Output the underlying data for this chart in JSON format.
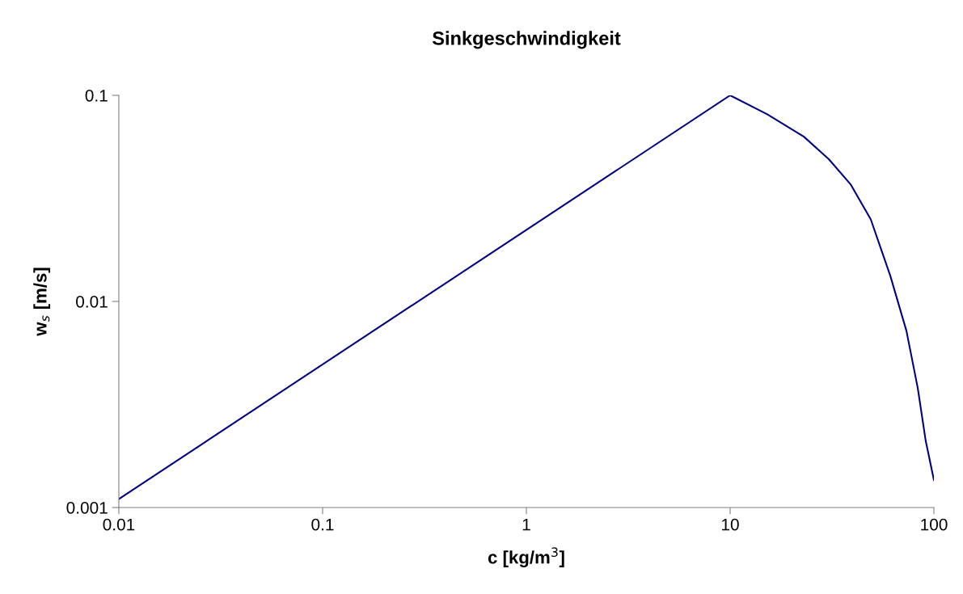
{
  "chart_data": {
    "type": "line",
    "title": "Sinkgeschwindigkeit",
    "xlabel": "c [kg/m$^{3}$]",
    "ylabel": "w$_{s}$ [m/s]",
    "log": "xy",
    "grid": false,
    "marker": "none",
    "line_style": "solid",
    "xlim": [
      0.01,
      100
    ],
    "xticks": [
      0.01,
      0.1,
      1,
      10,
      100
    ],
    "ylim": [
      0.001,
      0.1
    ],
    "yticks": [
      0.001,
      0.01,
      0.1
    ],
    "series": [
      {
        "color": "#000080",
        "x": [
          0.01,
          10,
          15.2,
          23.0,
          30.5,
          39.0,
          49.0,
          61.1,
          73.3,
          83.3,
          91.2,
          100
        ],
        "values": [
          0.0011,
          0.1,
          0.081,
          0.063,
          0.049,
          0.037,
          0.025,
          0.0133,
          0.0072,
          0.0038,
          0.0021,
          0.00136
        ]
      }
    ]
  }
}
